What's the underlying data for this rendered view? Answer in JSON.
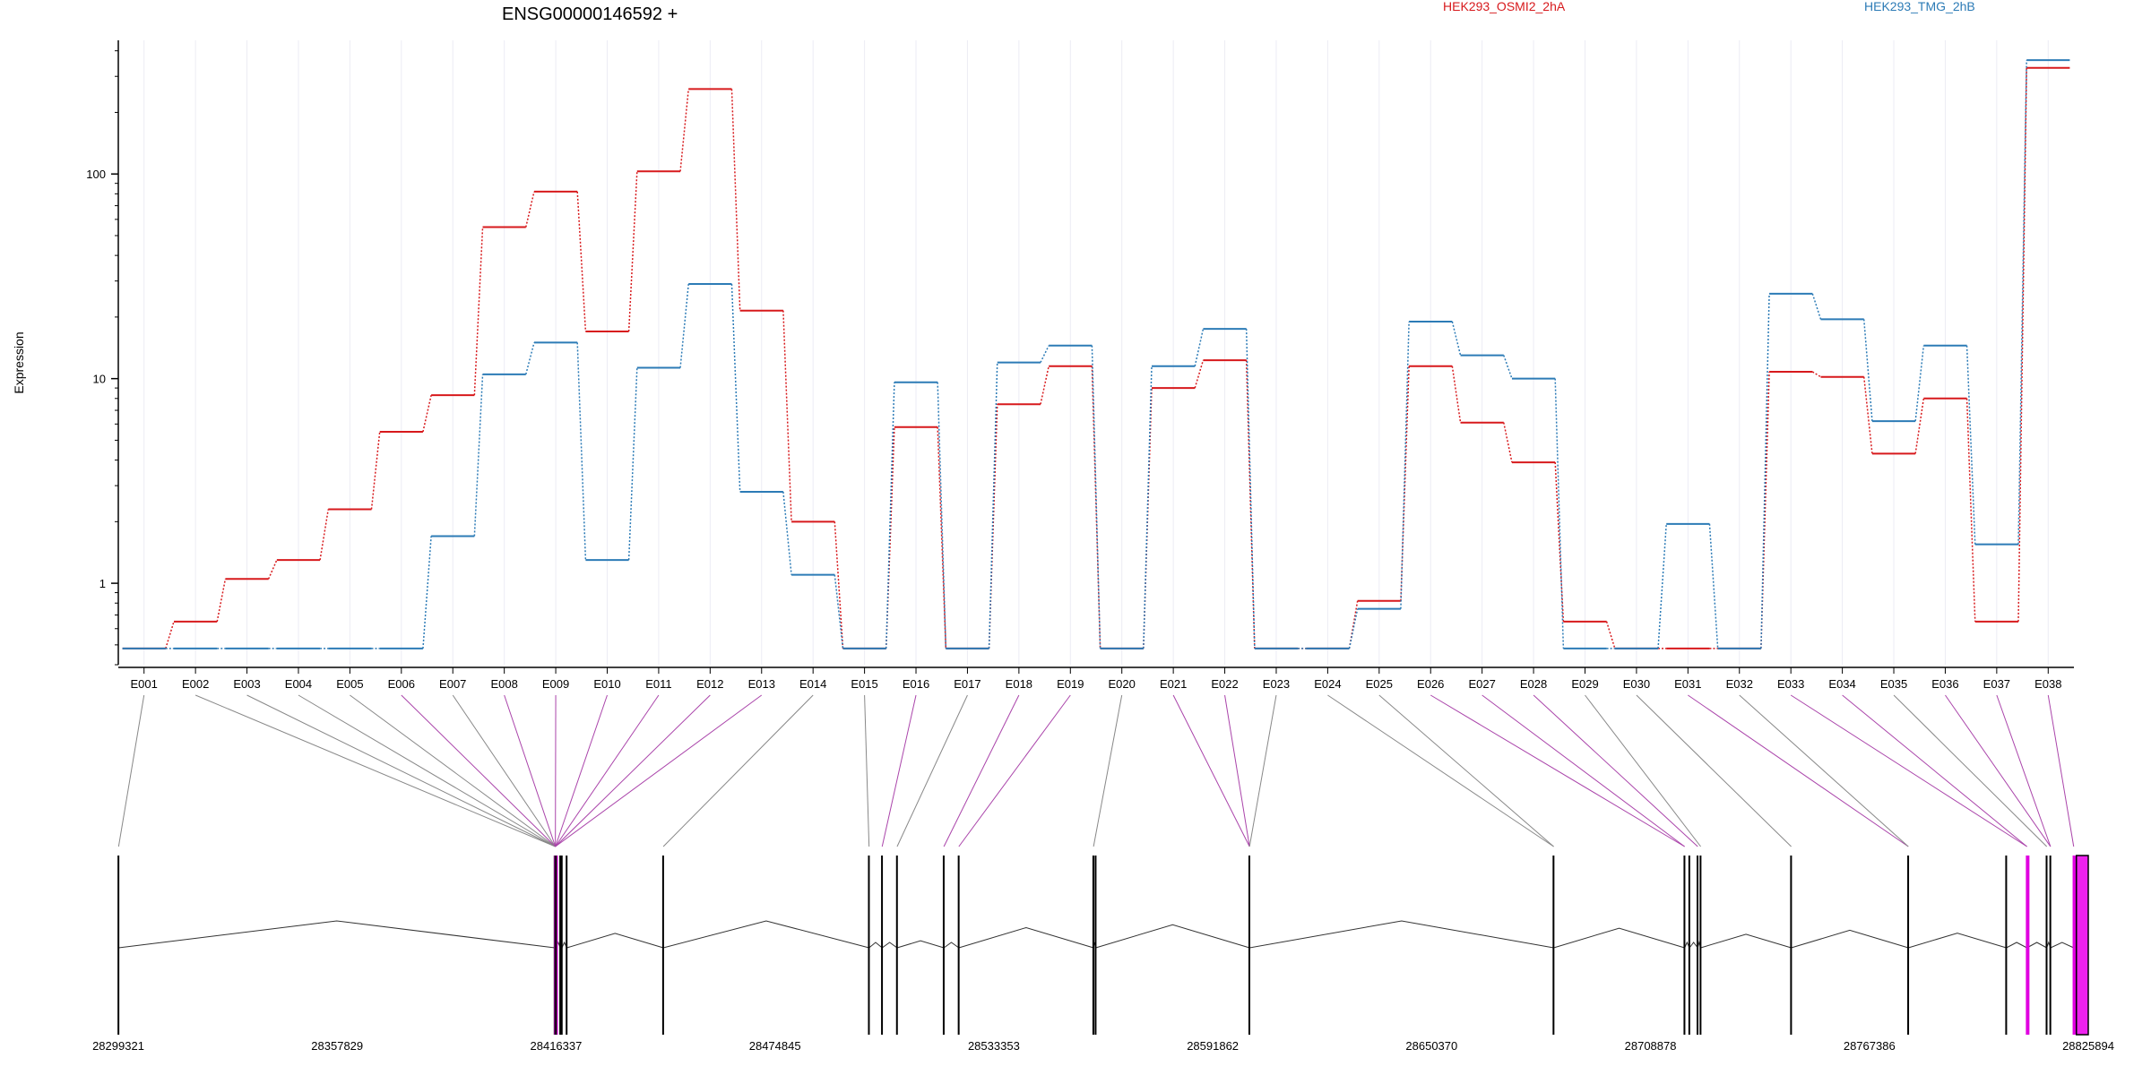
{
  "chart_data": {
    "type": "line",
    "title": "ENSG00000146592 +",
    "ylabel": "Expression",
    "yscale": "log",
    "ylim": [
      0.4,
      450
    ],
    "yticks": [
      1,
      10,
      100
    ],
    "yticklabels": [
      "1",
      "10",
      "100"
    ],
    "grid": "vertical",
    "legend_position": "top",
    "categories": [
      "E001",
      "E002",
      "E003",
      "E004",
      "E005",
      "E006",
      "E007",
      "E008",
      "E009",
      "E010",
      "E011",
      "E012",
      "E013",
      "E014",
      "E015",
      "E016",
      "E017",
      "E018",
      "E019",
      "E020",
      "E021",
      "E022",
      "E023",
      "E024",
      "E025",
      "E026",
      "E027",
      "E028",
      "E029",
      "E030",
      "E031",
      "E032",
      "E033",
      "E034",
      "E035",
      "E036",
      "E037",
      "E038"
    ],
    "series": [
      {
        "name": "HEK293_OSMI2_2hA",
        "color": "#d7191c",
        "values": [
          0.48,
          0.65,
          1.05,
          1.3,
          2.3,
          5.5,
          8.3,
          55,
          82,
          17,
          103,
          260,
          21.5,
          2.0,
          0.48,
          5.8,
          0.48,
          7.5,
          11.5,
          0.48,
          9.0,
          12.3,
          0.48,
          0.48,
          0.82,
          11.5,
          6.1,
          3.9,
          0.65,
          0.48,
          0.48,
          0.48,
          10.8,
          10.2,
          4.3,
          8.0,
          0.65,
          330
        ]
      },
      {
        "name": "HEK293_TMG_2hB",
        "color": "#2c7bb6",
        "values": [
          0.48,
          0.48,
          0.48,
          0.48,
          0.48,
          0.48,
          1.7,
          10.5,
          15,
          1.3,
          11.3,
          29,
          2.8,
          1.1,
          0.48,
          9.6,
          0.48,
          12,
          14.5,
          0.48,
          11.5,
          17.5,
          0.48,
          0.48,
          0.75,
          19,
          13,
          10,
          0.48,
          0.48,
          1.95,
          0.48,
          26,
          19.5,
          6.2,
          14.5,
          1.55,
          360
        ]
      }
    ],
    "gene_model": {
      "coordinate_ticks": [
        "28299321",
        "28357829",
        "28416337",
        "28474845",
        "28533353",
        "28591862",
        "28650370",
        "28708878",
        "28767386",
        "28825894"
      ],
      "start": 28299321,
      "end": 28825894,
      "exon_positions": [
        28299400,
        28416000,
        28416150,
        28416337,
        28417500,
        28417900,
        28419200,
        28445000,
        28500000,
        28503500,
        28507500,
        28520000,
        28524000,
        28560000,
        28560600,
        28601700,
        28683000,
        28718000,
        28719300,
        28721500,
        28722300,
        28746500,
        28777800,
        28804000,
        28809500,
        28814800,
        28815800,
        28822000
      ],
      "exon_colors": [
        "#000000",
        "#000000",
        "#e000e0",
        "#000000",
        "#000000",
        "#000000",
        "#000000",
        "#000000",
        "#000000",
        "#000000",
        "#000000",
        "#000000",
        "#000000",
        "#000000",
        "#000000",
        "#000000",
        "#000000",
        "#000000",
        "#000000",
        "#000000",
        "#000000",
        "#000000",
        "#000000",
        "#000000",
        "#e000e0",
        "#000000",
        "#000000",
        "#e000e0"
      ],
      "exon_connector_targets": [
        28299400,
        28416150,
        28416150,
        28416150,
        28416150,
        28416150,
        28416150,
        28416150,
        28416150,
        28416150,
        28416150,
        28416150,
        28416150,
        28445000,
        28500000,
        28503500,
        28507500,
        28520000,
        28524000,
        28560000,
        28601700,
        28601700,
        28601700,
        28683000,
        28683000,
        28718000,
        28718000,
        28721500,
        28722300,
        28746500,
        28777800,
        28777800,
        28809500,
        28809500,
        28814800,
        28815800,
        28815800,
        28822000
      ],
      "last_exon_highlight_color": "#ee22ee",
      "connector_colors": [
        "#888888",
        "#888888",
        "#888888",
        "#888888",
        "#888888",
        "#aa44aa",
        "#888888",
        "#aa44aa",
        "#aa44aa",
        "#aa44aa",
        "#aa44aa",
        "#aa44aa",
        "#aa44aa",
        "#888888",
        "#888888",
        "#aa44aa",
        "#888888",
        "#aa44aa",
        "#aa44aa",
        "#888888",
        "#aa44aa",
        "#aa44aa",
        "#888888",
        "#888888",
        "#888888",
        "#aa44aa",
        "#aa44aa",
        "#aa44aa",
        "#888888",
        "#888888",
        "#aa44aa",
        "#888888",
        "#aa44aa",
        "#aa44aa",
        "#888888",
        "#aa44aa",
        "#aa44aa",
        "#aa44aa"
      ]
    }
  }
}
